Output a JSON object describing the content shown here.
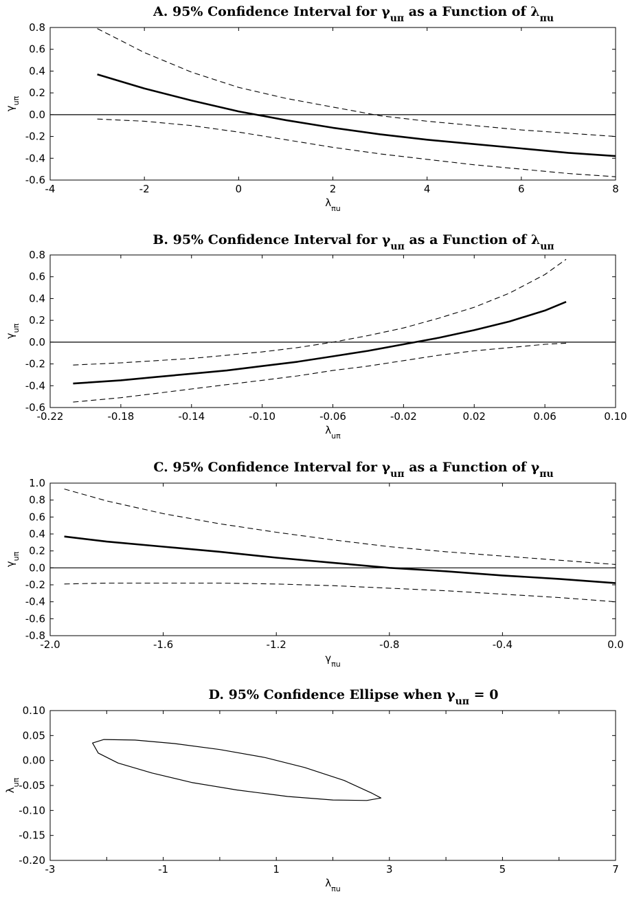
{
  "chart_data": [
    {
      "id": "A",
      "type": "line",
      "title": {
        "prefix": "A. 95% Confidence Interval for ",
        "g": "γ",
        "g_sub": "uπ",
        "mid": " as a Function of ",
        "v": "λ",
        "v_sub": "πu"
      },
      "xlabel": {
        "sym": "λ",
        "sub": "πu"
      },
      "ylabel": {
        "sym": "γ",
        "sub": "uπ"
      },
      "xlim": [
        -4,
        8
      ],
      "ylim": [
        -0.6,
        0.8
      ],
      "xticks": [
        "-4",
        "-2",
        "0",
        "2",
        "4",
        "6",
        "8"
      ],
      "xtick_values": [
        -4,
        -2,
        0,
        2,
        4,
        6,
        8
      ],
      "yticks": [
        "-0.6",
        "-0.4",
        "-0.2",
        "0.0",
        "0.2",
        "0.4",
        "0.6",
        "0.8"
      ],
      "ytick_values": [
        -0.6,
        -0.4,
        -0.2,
        0.0,
        0.2,
        0.4,
        0.6,
        0.8
      ],
      "zero_line": true,
      "x": [
        -3,
        -2,
        -1,
        0,
        1,
        2,
        3,
        4,
        5,
        6,
        7,
        8
      ],
      "series": [
        {
          "style": "solid",
          "values": [
            0.37,
            0.24,
            0.13,
            0.03,
            -0.05,
            -0.12,
            -0.18,
            -0.23,
            -0.27,
            -0.31,
            -0.35,
            -0.38
          ]
        },
        {
          "style": "dashed",
          "values": [
            0.79,
            0.57,
            0.39,
            0.25,
            0.15,
            0.07,
            -0.01,
            -0.06,
            -0.1,
            -0.14,
            -0.17,
            -0.2
          ]
        },
        {
          "style": "dashed",
          "values": [
            -0.04,
            -0.06,
            -0.1,
            -0.16,
            -0.23,
            -0.3,
            -0.36,
            -0.41,
            -0.46,
            -0.5,
            -0.54,
            -0.57
          ]
        }
      ]
    },
    {
      "id": "B",
      "type": "line",
      "title": {
        "prefix": "B. 95% Confidence Interval for ",
        "g": "γ",
        "g_sub": "uπ",
        "mid": " as a Function of ",
        "v": "λ",
        "v_sub": "uπ"
      },
      "xlabel": {
        "sym": "λ",
        "sub": "uπ"
      },
      "ylabel": {
        "sym": "γ",
        "sub": "uπ"
      },
      "xlim": [
        -0.22,
        0.1
      ],
      "ylim": [
        -0.6,
        0.8
      ],
      "xticks": [
        "-0.22",
        "-0.18",
        "-0.14",
        "-0.10",
        "-0.06",
        "-0.02",
        "0.02",
        "0.06",
        "0.10"
      ],
      "xtick_values": [
        -0.22,
        -0.18,
        -0.14,
        -0.1,
        -0.06,
        -0.02,
        0.02,
        0.06,
        0.1
      ],
      "yticks": [
        "-0.6",
        "-0.4",
        "-0.2",
        "0.0",
        "0.2",
        "0.4",
        "0.6",
        "0.8"
      ],
      "ytick_values": [
        -0.6,
        -0.4,
        -0.2,
        0.0,
        0.2,
        0.4,
        0.6,
        0.8
      ],
      "zero_line": true,
      "x": [
        -0.207,
        -0.18,
        -0.16,
        -0.14,
        -0.12,
        -0.1,
        -0.08,
        -0.06,
        -0.04,
        -0.02,
        0.0,
        0.02,
        0.04,
        0.06,
        0.072
      ],
      "series": [
        {
          "style": "solid",
          "values": [
            -0.38,
            -0.35,
            -0.32,
            -0.29,
            -0.26,
            -0.22,
            -0.18,
            -0.13,
            -0.08,
            -0.02,
            0.04,
            0.11,
            0.19,
            0.29,
            0.37
          ]
        },
        {
          "style": "dashed",
          "values": [
            -0.21,
            -0.19,
            -0.17,
            -0.15,
            -0.12,
            -0.09,
            -0.05,
            0.0,
            0.06,
            0.13,
            0.22,
            0.32,
            0.45,
            0.62,
            0.76
          ]
        },
        {
          "style": "dashed",
          "values": [
            -0.55,
            -0.51,
            -0.47,
            -0.43,
            -0.39,
            -0.35,
            -0.31,
            -0.26,
            -0.22,
            -0.17,
            -0.12,
            -0.08,
            -0.05,
            -0.02,
            -0.01
          ]
        }
      ]
    },
    {
      "id": "C",
      "type": "line",
      "title": {
        "prefix": "C. 95% Confidence Interval for ",
        "g": "γ",
        "g_sub": "uπ",
        "mid": " as a Function of ",
        "v": "γ",
        "v_sub": "πu"
      },
      "xlabel": {
        "sym": "γ",
        "sub": "πu"
      },
      "ylabel": {
        "sym": "γ",
        "sub": "uπ"
      },
      "xlim": [
        -2.0,
        0.0
      ],
      "ylim": [
        -0.8,
        1.0
      ],
      "xticks": [
        "-2.0",
        "-1.6",
        "-1.2",
        "-0.8",
        "-0.4",
        "0.0"
      ],
      "xtick_values": [
        -2.0,
        -1.6,
        -1.2,
        -0.8,
        -0.4,
        0.0
      ],
      "yticks": [
        "-0.8",
        "-0.6",
        "-0.4",
        "-0.2",
        "0.0",
        "0.2",
        "0.4",
        "0.6",
        "0.8",
        "1.0"
      ],
      "ytick_values": [
        -0.8,
        -0.6,
        -0.4,
        -0.2,
        0.0,
        0.2,
        0.4,
        0.6,
        0.8,
        1.0
      ],
      "zero_line": true,
      "x": [
        -1.95,
        -1.8,
        -1.6,
        -1.4,
        -1.2,
        -1.0,
        -0.8,
        -0.6,
        -0.4,
        -0.2,
        0.0
      ],
      "series": [
        {
          "style": "solid",
          "values": [
            0.37,
            0.31,
            0.25,
            0.19,
            0.12,
            0.06,
            0.0,
            -0.04,
            -0.09,
            -0.13,
            -0.18
          ]
        },
        {
          "style": "dashed",
          "values": [
            0.93,
            0.79,
            0.64,
            0.52,
            0.42,
            0.33,
            0.25,
            0.19,
            0.14,
            0.09,
            0.04
          ]
        },
        {
          "style": "dashed",
          "values": [
            -0.19,
            -0.18,
            -0.18,
            -0.18,
            -0.19,
            -0.21,
            -0.24,
            -0.27,
            -0.31,
            -0.35,
            -0.4
          ]
        }
      ]
    },
    {
      "id": "D",
      "type": "line",
      "title": {
        "prefix": "D. 95% Confidence Ellipse when ",
        "g": "γ",
        "g_sub": "uπ",
        "mid": " = 0",
        "v": "",
        "v_sub": ""
      },
      "xlabel": {
        "sym": "λ",
        "sub": "πu"
      },
      "ylabel": {
        "sym": "λ",
        "sub": "uπ"
      },
      "xlim": [
        -3,
        7
      ],
      "ylim": [
        -0.2,
        0.1
      ],
      "xticks": [
        "-3",
        "-1",
        "1",
        "3",
        "5",
        "7"
      ],
      "xtick_values": [
        -3,
        -1,
        1,
        3,
        5,
        7
      ],
      "minor_xtick_values": [
        -2,
        0,
        2,
        4,
        6
      ],
      "yticks": [
        "-0.20",
        "-0.15",
        "-0.10",
        "-0.05",
        "0.00",
        "0.05",
        "0.10"
      ],
      "ytick_values": [
        -0.2,
        -0.15,
        -0.1,
        -0.05,
        0.0,
        0.05,
        0.1
      ],
      "zero_line": false,
      "ellipse": {
        "x": [
          -2.25,
          -2.05,
          -1.5,
          -0.8,
          0.0,
          0.8,
          1.5,
          2.2,
          2.7,
          2.85,
          2.6,
          2.0,
          1.2,
          0.3,
          -0.5,
          -1.2,
          -1.8,
          -2.15,
          -2.25
        ],
        "y": [
          0.035,
          0.042,
          0.041,
          0.034,
          0.022,
          0.006,
          -0.014,
          -0.04,
          -0.066,
          -0.075,
          -0.08,
          -0.079,
          -0.072,
          -0.059,
          -0.044,
          -0.025,
          -0.005,
          0.015,
          0.035
        ]
      }
    }
  ]
}
